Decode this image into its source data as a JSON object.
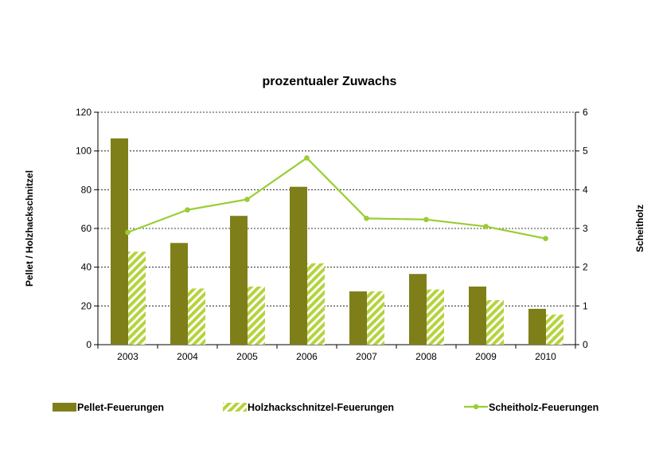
{
  "chart_data": {
    "type": "bar",
    "title": "prozentualer Zuwachs",
    "categories": [
      "2003",
      "2004",
      "2005",
      "2006",
      "2007",
      "2008",
      "2009",
      "2010"
    ],
    "y_left": {
      "label": "Pellet / Holzhackschnitzel",
      "ylim": [
        0,
        120
      ],
      "ticks": [
        "0",
        "20",
        "40",
        "60",
        "80",
        "100",
        "120"
      ]
    },
    "y_right": {
      "label": "Scheitholz",
      "ylim": [
        0,
        6
      ],
      "ticks": [
        "0",
        "1",
        "2",
        "3",
        "4",
        "5",
        "6"
      ]
    },
    "grid": true,
    "legend_position": "bottom",
    "series": [
      {
        "name": "Pellet-Feuerungen",
        "type": "bar",
        "axis": "left",
        "color": "#7f7f1a",
        "values": [
          106.5,
          52.5,
          66.5,
          81.5,
          27.5,
          36.5,
          30,
          18.5
        ]
      },
      {
        "name": "Holzhackschnitzel-Feuerungen",
        "type": "bar",
        "axis": "left",
        "color": "#b5d33d",
        "pattern": "hatched",
        "values": [
          48,
          29,
          30,
          42,
          27.5,
          28.5,
          23,
          15.5
        ]
      },
      {
        "name": "Scheitholz-Feuerungen",
        "type": "line",
        "axis": "right",
        "color": "#9acd32",
        "values": [
          2.9,
          3.48,
          3.75,
          4.82,
          3.26,
          3.23,
          3.05,
          2.74
        ]
      }
    ]
  }
}
